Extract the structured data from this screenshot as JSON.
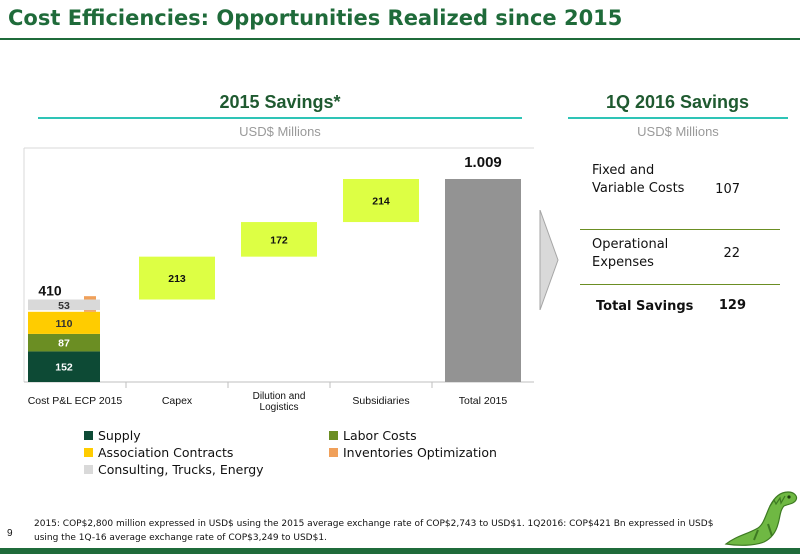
{
  "page": {
    "title": "Cost Efficiencies: Opportunities Realized since 2015",
    "page_number": "9",
    "footnote_lines": [
      "2015: COP$2,800 million expressed in USD$ using the 2015 average exchange rate of COP$2,743 to USD$1. 1Q2016: COP$421 Bn expressed in USD$",
      "using the 1Q-16 average exchange rate of COP$3,249 to USD$1."
    ]
  },
  "left_section": {
    "title": "2015  Savings*",
    "units": "USD$ Millions"
  },
  "right_section": {
    "title": "1Q 2016 Savings",
    "units": "USD$ Millions",
    "rows": [
      {
        "label": "Fixed and Variable Costs",
        "value": "107"
      },
      {
        "label": "Operational Expenses",
        "value": "22"
      }
    ],
    "total": {
      "label": "Total Savings",
      "value": "129"
    }
  },
  "chart_data": {
    "type": "bar",
    "subtype": "waterfall",
    "categories": [
      "Cost P&L ECP 2015",
      "Capex",
      "Dilution and Logistics",
      "Subsidiaries",
      "Total 2015"
    ],
    "stack_segments": [
      {
        "name": "Supply",
        "value": 152,
        "color": "#0d4a35",
        "label_color": "#ffffff"
      },
      {
        "name": "Labor Costs",
        "value": 87,
        "color": "#6b8e23",
        "label_color": "#ffffff"
      },
      {
        "name": "Association Contracts",
        "value": 110,
        "color": "#ffcc00",
        "label_color": "#333333"
      },
      {
        "name": "Inventories Optimization",
        "value": 8,
        "color": "#f0a05a",
        "label_color": "#333333"
      },
      {
        "name": "Consulting, Trucks, Energy",
        "value": 53,
        "color": "#d9d9d9",
        "label_color": "#333333"
      }
    ],
    "first_total_label": "410",
    "increments": [
      {
        "category": "Capex",
        "value": 213,
        "label": "213"
      },
      {
        "category": "Dilution and Logistics",
        "value": 172,
        "label": "172"
      },
      {
        "category": "Subsidiaries",
        "value": 214,
        "label": "214"
      }
    ],
    "total": {
      "value": 1009,
      "label": "1.009",
      "color": "#939393"
    },
    "increment_color": "#ddff44",
    "ylim": [
      0,
      1100
    ],
    "legend_position": "bottom"
  },
  "colors": {
    "brand_green": "#1f6b3a",
    "accent_teal": "#2ec4b6"
  }
}
